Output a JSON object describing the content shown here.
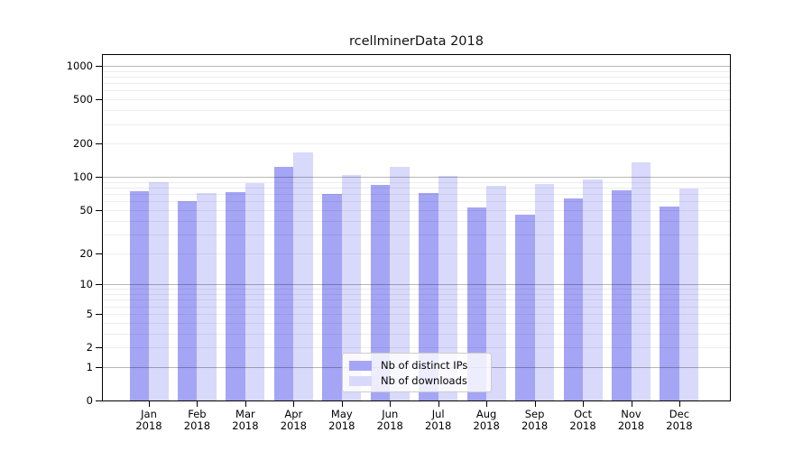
{
  "chart": {
    "title": "rcellminerData 2018"
  },
  "chart_data": {
    "type": "bar",
    "title": "rcellminerData 2018",
    "categories": [
      "Jan 2018",
      "Feb 2018",
      "Mar 2018",
      "Apr 2018",
      "May 2018",
      "Jun 2018",
      "Jul 2018",
      "Aug 2018",
      "Sep 2018",
      "Oct 2018",
      "Nov 2018",
      "Dec 2018"
    ],
    "series": [
      {
        "name": "Nb of distinct IPs",
        "color": "#a5a5f5",
        "values": [
          76,
          61,
          75,
          125,
          72,
          87,
          73,
          54,
          46,
          65,
          77,
          55
        ]
      },
      {
        "name": "Nb of downloads",
        "color": "#d9d9fb",
        "values": [
          92,
          73,
          90,
          170,
          107,
          125,
          105,
          85,
          88,
          97,
          138,
          80
        ]
      }
    ],
    "xlabel": "",
    "ylabel": "",
    "yscale": "log1p",
    "ylim": [
      0,
      1275
    ],
    "yticks": [
      0,
      1,
      2,
      5,
      10,
      20,
      50,
      100,
      200,
      500,
      1000
    ],
    "grid": "horizontal",
    "legend_position": "bottom-center",
    "colors": {
      "major_grid": "rgba(0,0,0,0.28)",
      "minor_grid": "rgba(0,0,0,0.07)",
      "axis": "#000000",
      "background": "#ffffff"
    }
  }
}
